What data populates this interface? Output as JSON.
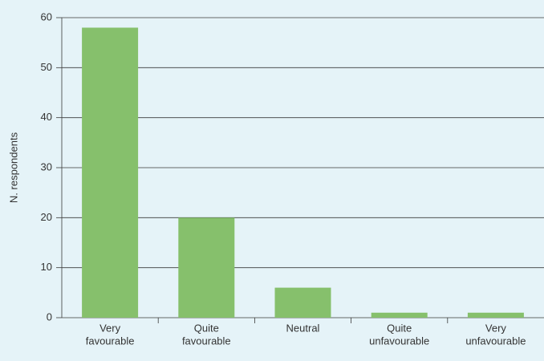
{
  "chart_data": {
    "type": "bar",
    "y_label": "N. respondents",
    "categories": [
      [
        "Very",
        "favourable"
      ],
      [
        "Quite",
        "favourable"
      ],
      [
        "Neutral"
      ],
      [
        "Quite",
        "unfavourable"
      ],
      [
        "Very",
        "unfavourable"
      ]
    ],
    "values": [
      58,
      20,
      6,
      1,
      1
    ],
    "color": "#86c06c",
    "ylim": [
      0,
      60
    ],
    "yticks": [
      0,
      10,
      20,
      30,
      40,
      50,
      60
    ],
    "grid": true
  }
}
